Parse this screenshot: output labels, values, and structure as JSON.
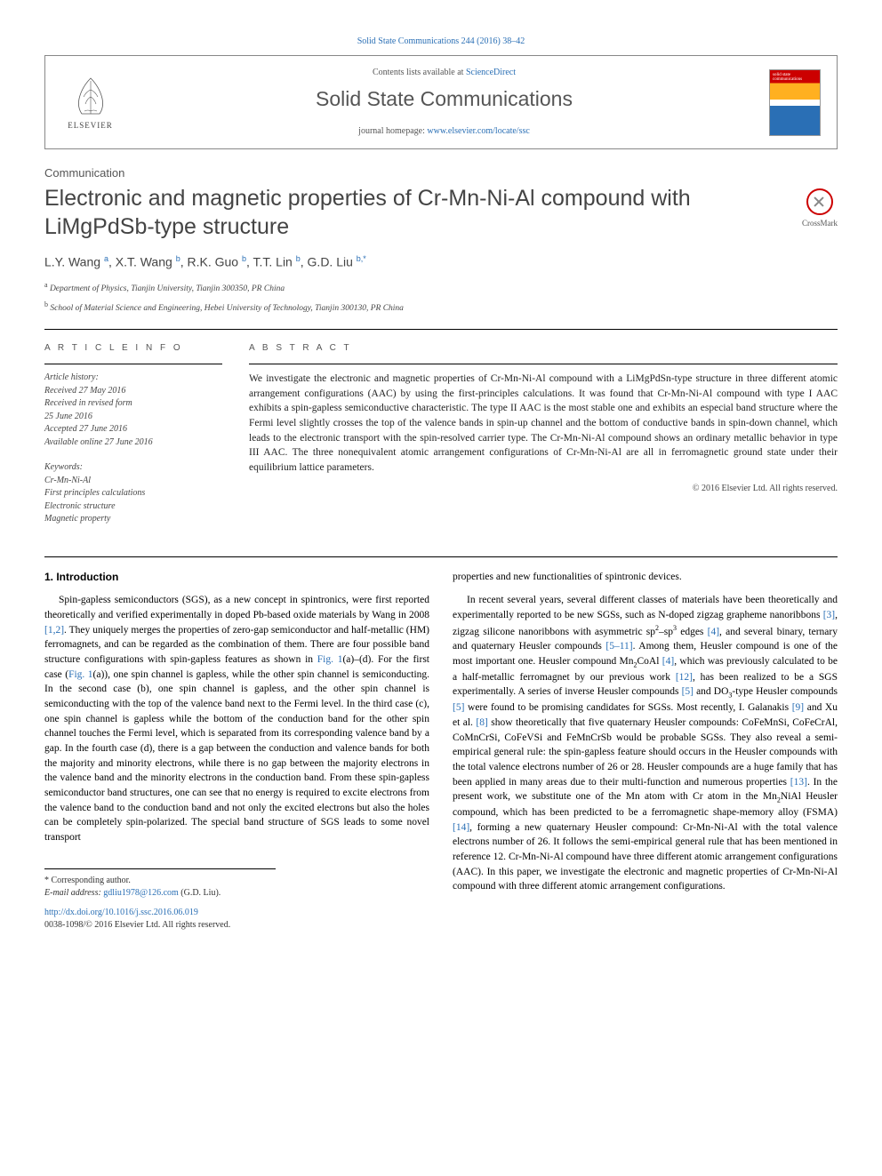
{
  "top_ref": "Solid State Communications 244 (2016) 38–42",
  "header": {
    "contents_prefix": "Contents lists available at ",
    "contents_link": "ScienceDirect",
    "journal_name": "Solid State Communications",
    "homepage_prefix": "journal homepage: ",
    "homepage_link": "www.elsevier.com/locate/ssc",
    "elsevier_label": "ELSEVIER",
    "cover_text": "solid\nstate\ncommunications"
  },
  "doc_type": "Communication",
  "title": "Electronic and magnetic properties of Cr-Mn-Ni-Al compound with LiMgPdSb-type structure",
  "crossmark_label": "CrossMark",
  "authors_html": "L.Y. Wang <sup>a</sup>, X.T. Wang <sup>b</sup>, R.K. Guo <sup>b</sup>, T.T. Lin <sup>b</sup>, G.D. Liu <sup>b,*</sup>",
  "affiliations": [
    {
      "sup": "a",
      "text": "Department of Physics, Tianjin University, Tianjin 300350, PR China"
    },
    {
      "sup": "b",
      "text": "School of Material Science and Engineering, Hebei University of Technology, Tianjin 300130, PR China"
    }
  ],
  "article_info": {
    "heading": "A R T I C L E  I N F O",
    "history_label": "Article history:",
    "history": [
      "Received 27 May 2016",
      "Received in revised form",
      "25 June 2016",
      "Accepted 27 June 2016",
      "Available online 27 June 2016"
    ],
    "keywords_label": "Keywords:",
    "keywords": [
      "Cr-Mn-Ni-Al",
      "First principles calculations",
      "Electronic structure",
      "Magnetic property"
    ]
  },
  "abstract": {
    "heading": "A B S T R A C T",
    "text": "We investigate the electronic and magnetic properties of Cr-Mn-Ni-Al compound with a LiMgPdSn-type structure in three different atomic arrangement configurations (AAC) by using the first-principles calculations. It was found that Cr-Mn-Ni-Al compound with type I AAC exhibits a spin-gapless semiconductive characteristic. The type II AAC is the most stable one and exhibits an especial band structure where the Fermi level slightly crosses the top of the valence bands in spin-up channel and the bottom of conductive bands in spin-down channel, which leads to the electronic transport with the spin-resolved carrier type. The Cr-Mn-Ni-Al compound shows an ordinary metallic behavior in type III AAC. The three nonequivalent atomic arrangement configurations of Cr-Mn-Ni-Al are all in ferromagnetic ground state under their equilibrium lattice parameters.",
    "copyright": "© 2016 Elsevier Ltd. All rights reserved."
  },
  "intro": {
    "heading": "1. Introduction",
    "para1": "Spin-gapless semiconductors (SGS), as a new concept in spintronics, were first reported theoretically and verified experimentally in doped Pb-based oxide materials by Wang in 2008 [1,2]. They uniquely merges the properties of zero-gap semiconductor and half-metallic (HM) ferromagnets, and can be regarded as the combination of them. There are four possible band structure configurations with spin-gapless features as shown in Fig. 1(a)–(d). For the first case (Fig. 1(a)), one spin channel is gapless, while the other spin channel is semiconducting. In the second case (b), one spin channel is gapless, and the other spin channel is semiconducting with the top of the valence band next to the Fermi level. In the third case (c), one spin channel is gapless while the bottom of the conduction band for the other spin channel touches the Fermi level, which is separated from its corresponding valence band by a gap. In the fourth case (d), there is a gap between the conduction and valence bands for both the majority and minority electrons, while there is no gap between the majority electrons in the valence band and the minority electrons in the conduction band. From these spin-gapless semiconductor band structures, one can see that no energy is required to excite electrons from the valence band to the conduction band and not only the excited electrons but also the holes can be completely spin-polarized. The special band structure of SGS leads to some novel transport",
    "para1_cont": "properties and new functionalities of spintronic devices.",
    "para2": "In recent several years, several different classes of materials have been theoretically and experimentally reported to be new SGSs, such as N-doped zigzag grapheme nanoribbons [3], zigzag silicone nanoribbons with asymmetric sp²–sp³ edges [4], and several binary, ternary and quaternary Heusler compounds [5–11]. Among them, Heusler compound is one of the most important one. Heusler compound Mn₂CoAl [4], which was previously calculated to be a half-metallic ferromagnet by our previous work [12], has been realized to be a SGS experimentally. A series of inverse Heusler compounds [5] and DO₃-type Heusler compounds [5] were found to be promising candidates for SGSs. Most recently, I. Galanakis [9] and Xu et al. [8] show theoretically that five quaternary Heusler compounds: CoFeMnSi, CoFeCrAl, CoMnCrSi, CoFeVSi and FeMnCrSb would be probable SGSs. They also reveal a semi-empirical general rule: the spin-gapless feature should occurs in the Heusler compounds with the total valence electrons number of 26 or 28. Heusler compounds are a huge family that has been applied in many areas due to their multi-function and numerous properties [13]. In the present work, we substitute one of the Mn atom with Cr atom in the Mn₂NiAl Heusler compound, which has been predicted to be a ferromagnetic shape-memory alloy (FSMA) [14], forming a new quaternary Heusler compound: Cr-Mn-Ni-Al with the total valence electrons number of 26. It follows the semi-empirical general rule that has been mentioned in reference 12. Cr-Mn-Ni-Al compound have three different atomic arrangement configurations (AAC). In this paper, we investigate the electronic and magnetic properties of Cr-Mn-Ni-Al compound with three different atomic arrangement configurations."
  },
  "footnote": {
    "corresponding": "* Corresponding author.",
    "email_label": "E-mail address: ",
    "email": "gdliu1978@126.com",
    "email_name": " (G.D. Liu).",
    "doi": "http://dx.doi.org/10.1016/j.ssc.2016.06.019",
    "issn": "0038-1098/© 2016 Elsevier Ltd. All rights reserved."
  },
  "colors": {
    "link": "#2a6fb5",
    "heading_gray": "#555555",
    "text": "#222222",
    "rule": "#000000"
  }
}
